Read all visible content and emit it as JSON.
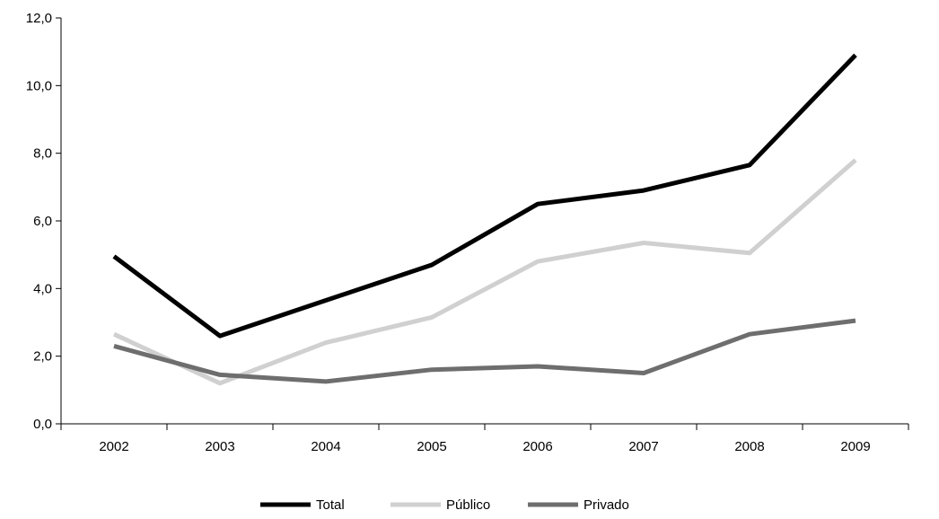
{
  "chart_data": {
    "type": "line",
    "categories": [
      "2002",
      "2003",
      "2004",
      "2005",
      "2006",
      "2007",
      "2008",
      "2009"
    ],
    "series": [
      {
        "name": "Total",
        "color": "#000000",
        "values": [
          4.95,
          2.6,
          3.65,
          4.7,
          6.5,
          6.9,
          7.65,
          10.9
        ]
      },
      {
        "name": "Público",
        "color": "#d0d0d0",
        "values": [
          2.65,
          1.2,
          2.4,
          3.15,
          4.8,
          5.35,
          5.05,
          7.8
        ]
      },
      {
        "name": "Privado",
        "color": "#6e6e6e",
        "values": [
          2.3,
          1.45,
          1.25,
          1.6,
          1.7,
          1.5,
          2.65,
          3.05
        ]
      }
    ],
    "yticks": [
      "0,0",
      "2,0",
      "4,0",
      "6,0",
      "8,0",
      "10,0",
      "12,0"
    ],
    "ylim": [
      0,
      12
    ],
    "title": "",
    "xlabel": "",
    "ylabel": "",
    "grid": false,
    "legend": "bottom-center"
  }
}
